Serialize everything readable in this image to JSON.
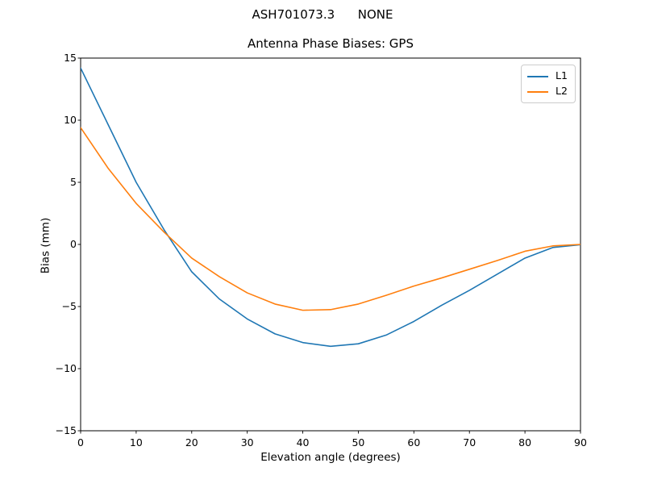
{
  "figure": {
    "suptitle": "ASH701073.3      NONE",
    "axes_title": "Antenna Phase Biases: GPS",
    "xlabel": "Elevation angle (degrees)",
    "ylabel": "Bias (mm)",
    "background_color": "#ffffff",
    "spine_color": "#000000"
  },
  "legend": {
    "position": "upper right",
    "border_color": "#cccccc",
    "items": [
      {
        "label": "L1",
        "color": "#1f77b4"
      },
      {
        "label": "L2",
        "color": "#ff7f0e"
      }
    ]
  },
  "chart_data": {
    "type": "line",
    "suptitle": "ASH701073.3      NONE",
    "title": "Antenna Phase Biases: GPS",
    "xlabel": "Elevation angle (degrees)",
    "ylabel": "Bias (mm)",
    "xlim": [
      0,
      90
    ],
    "ylim": [
      -15,
      15
    ],
    "grid": false,
    "legend_position": "upper right",
    "x": [
      0,
      5,
      10,
      15,
      20,
      25,
      30,
      35,
      40,
      45,
      50,
      55,
      60,
      65,
      70,
      75,
      80,
      85,
      90
    ],
    "series": [
      {
        "name": "L1",
        "color": "#1f77b4",
        "values": [
          14.2,
          9.6,
          5.0,
          1.2,
          -2.2,
          -4.4,
          -6.0,
          -7.2,
          -7.9,
          -8.2,
          -8.0,
          -7.3,
          -6.2,
          -4.9,
          -3.7,
          -2.4,
          -1.1,
          -0.25,
          -0.02
        ]
      },
      {
        "name": "L2",
        "color": "#ff7f0e",
        "values": [
          9.4,
          6.1,
          3.3,
          1.0,
          -1.1,
          -2.6,
          -3.9,
          -4.8,
          -5.3,
          -5.25,
          -4.8,
          -4.1,
          -3.35,
          -2.7,
          -2.0,
          -1.3,
          -0.55,
          -0.12,
          0.0
        ]
      }
    ],
    "xticks": [
      {
        "v": 0,
        "label": "0"
      },
      {
        "v": 10,
        "label": "10"
      },
      {
        "v": 20,
        "label": "20"
      },
      {
        "v": 30,
        "label": "30"
      },
      {
        "v": 40,
        "label": "40"
      },
      {
        "v": 50,
        "label": "50"
      },
      {
        "v": 60,
        "label": "60"
      },
      {
        "v": 70,
        "label": "70"
      },
      {
        "v": 80,
        "label": "80"
      },
      {
        "v": 90,
        "label": "90"
      }
    ],
    "yticks": [
      {
        "v": -15,
        "label": "−15"
      },
      {
        "v": -10,
        "label": "−10"
      },
      {
        "v": -5,
        "label": "−5"
      },
      {
        "v": 0,
        "label": "0"
      },
      {
        "v": 5,
        "label": "5"
      },
      {
        "v": 10,
        "label": "10"
      },
      {
        "v": 15,
        "label": "15"
      }
    ]
  }
}
